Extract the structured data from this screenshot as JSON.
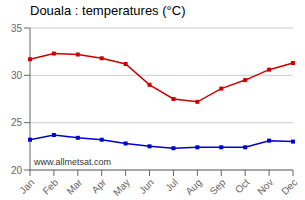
{
  "chart_data": {
    "type": "line",
    "title": "Douala : temperatures (°C)",
    "categories": [
      "Jan",
      "Feb",
      "Mar",
      "Apr",
      "May",
      "Jun",
      "Jul",
      "Aug",
      "Sep",
      "Oct",
      "Nov",
      "Dec"
    ],
    "series": [
      {
        "color": "#cc0000",
        "marker": "square",
        "values": [
          31.7,
          32.3,
          32.2,
          31.8,
          31.2,
          29.0,
          27.5,
          27.2,
          28.6,
          29.5,
          30.6,
          31.3
        ]
      },
      {
        "color": "#0000cc",
        "marker": "square",
        "values": [
          23.2,
          23.7,
          23.4,
          23.2,
          22.8,
          22.5,
          22.3,
          22.4,
          22.4,
          22.4,
          23.1,
          23.0
        ]
      }
    ],
    "ylim": [
      20,
      35
    ],
    "yticks": [
      20,
      25,
      30,
      35
    ],
    "grid": "y",
    "annotations": [
      "www.allmetsat.com"
    ]
  }
}
